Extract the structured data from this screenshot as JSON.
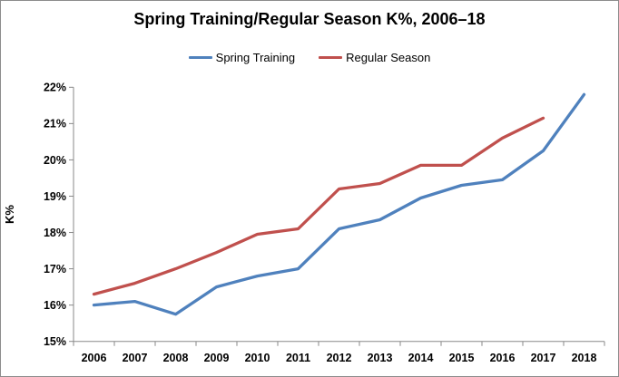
{
  "window": {
    "background": "#ffffff",
    "border_color": "#8c8c8c"
  },
  "chart_data": {
    "type": "line",
    "title": "Spring Training/Regular Season K%, 2006–18",
    "ylabel": "K%",
    "xlabel": "",
    "ylim": [
      15,
      22
    ],
    "grid": false,
    "legend_position": "top",
    "axis_color": "#898989",
    "categories": [
      "2006",
      "2007",
      "2008",
      "2009",
      "2010",
      "2011",
      "2012",
      "2013",
      "2014",
      "2015",
      "2016",
      "2017",
      "2018"
    ],
    "y_ticks": [
      {
        "value": 15,
        "label": "15%"
      },
      {
        "value": 16,
        "label": "16%"
      },
      {
        "value": 17,
        "label": "17%"
      },
      {
        "value": 18,
        "label": "18%"
      },
      {
        "value": 19,
        "label": "19%"
      },
      {
        "value": 20,
        "label": "20%"
      },
      {
        "value": 21,
        "label": "21%"
      },
      {
        "value": 22,
        "label": "22%"
      }
    ],
    "series": [
      {
        "name": "Spring Training",
        "color": "#4F81BD",
        "values": [
          16.0,
          16.1,
          15.75,
          16.5,
          16.8,
          17.0,
          18.1,
          18.35,
          18.95,
          19.3,
          19.45,
          20.25,
          21.8
        ]
      },
      {
        "name": "Regular Season",
        "color": "#C0504D",
        "values": [
          16.3,
          16.6,
          17.0,
          17.45,
          17.95,
          18.1,
          19.2,
          19.35,
          19.85,
          19.85,
          20.6,
          21.15,
          null
        ]
      }
    ]
  }
}
